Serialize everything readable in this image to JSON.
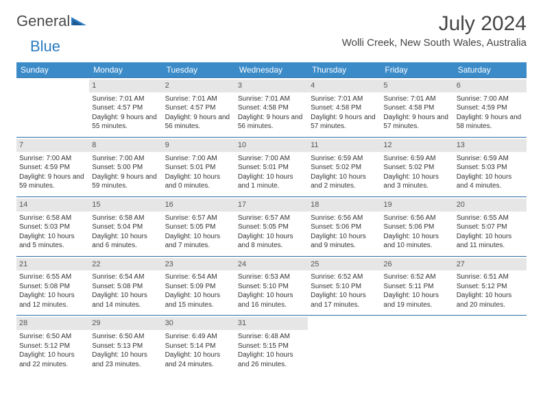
{
  "logo": {
    "text1": "General",
    "text2": "Blue"
  },
  "title": "July 2024",
  "location": "Wolli Creek, New South Wales, Australia",
  "colors": {
    "header_bg": "#3b8bc9",
    "header_text": "#ffffff",
    "daynum_bg": "#e6e6e6",
    "border": "#2a6ca8",
    "logo_blue": "#2a7ac0"
  },
  "weekdays": [
    "Sunday",
    "Monday",
    "Tuesday",
    "Wednesday",
    "Thursday",
    "Friday",
    "Saturday"
  ],
  "weeks": [
    [
      {
        "n": "",
        "sr": "",
        "ss": "",
        "dl": ""
      },
      {
        "n": "1",
        "sr": "Sunrise: 7:01 AM",
        "ss": "Sunset: 4:57 PM",
        "dl": "Daylight: 9 hours and 55 minutes."
      },
      {
        "n": "2",
        "sr": "Sunrise: 7:01 AM",
        "ss": "Sunset: 4:57 PM",
        "dl": "Daylight: 9 hours and 56 minutes."
      },
      {
        "n": "3",
        "sr": "Sunrise: 7:01 AM",
        "ss": "Sunset: 4:58 PM",
        "dl": "Daylight: 9 hours and 56 minutes."
      },
      {
        "n": "4",
        "sr": "Sunrise: 7:01 AM",
        "ss": "Sunset: 4:58 PM",
        "dl": "Daylight: 9 hours and 57 minutes."
      },
      {
        "n": "5",
        "sr": "Sunrise: 7:01 AM",
        "ss": "Sunset: 4:58 PM",
        "dl": "Daylight: 9 hours and 57 minutes."
      },
      {
        "n": "6",
        "sr": "Sunrise: 7:00 AM",
        "ss": "Sunset: 4:59 PM",
        "dl": "Daylight: 9 hours and 58 minutes."
      }
    ],
    [
      {
        "n": "7",
        "sr": "Sunrise: 7:00 AM",
        "ss": "Sunset: 4:59 PM",
        "dl": "Daylight: 9 hours and 59 minutes."
      },
      {
        "n": "8",
        "sr": "Sunrise: 7:00 AM",
        "ss": "Sunset: 5:00 PM",
        "dl": "Daylight: 9 hours and 59 minutes."
      },
      {
        "n": "9",
        "sr": "Sunrise: 7:00 AM",
        "ss": "Sunset: 5:01 PM",
        "dl": "Daylight: 10 hours and 0 minutes."
      },
      {
        "n": "10",
        "sr": "Sunrise: 7:00 AM",
        "ss": "Sunset: 5:01 PM",
        "dl": "Daylight: 10 hours and 1 minute."
      },
      {
        "n": "11",
        "sr": "Sunrise: 6:59 AM",
        "ss": "Sunset: 5:02 PM",
        "dl": "Daylight: 10 hours and 2 minutes."
      },
      {
        "n": "12",
        "sr": "Sunrise: 6:59 AM",
        "ss": "Sunset: 5:02 PM",
        "dl": "Daylight: 10 hours and 3 minutes."
      },
      {
        "n": "13",
        "sr": "Sunrise: 6:59 AM",
        "ss": "Sunset: 5:03 PM",
        "dl": "Daylight: 10 hours and 4 minutes."
      }
    ],
    [
      {
        "n": "14",
        "sr": "Sunrise: 6:58 AM",
        "ss": "Sunset: 5:03 PM",
        "dl": "Daylight: 10 hours and 5 minutes."
      },
      {
        "n": "15",
        "sr": "Sunrise: 6:58 AM",
        "ss": "Sunset: 5:04 PM",
        "dl": "Daylight: 10 hours and 6 minutes."
      },
      {
        "n": "16",
        "sr": "Sunrise: 6:57 AM",
        "ss": "Sunset: 5:05 PM",
        "dl": "Daylight: 10 hours and 7 minutes."
      },
      {
        "n": "17",
        "sr": "Sunrise: 6:57 AM",
        "ss": "Sunset: 5:05 PM",
        "dl": "Daylight: 10 hours and 8 minutes."
      },
      {
        "n": "18",
        "sr": "Sunrise: 6:56 AM",
        "ss": "Sunset: 5:06 PM",
        "dl": "Daylight: 10 hours and 9 minutes."
      },
      {
        "n": "19",
        "sr": "Sunrise: 6:56 AM",
        "ss": "Sunset: 5:06 PM",
        "dl": "Daylight: 10 hours and 10 minutes."
      },
      {
        "n": "20",
        "sr": "Sunrise: 6:55 AM",
        "ss": "Sunset: 5:07 PM",
        "dl": "Daylight: 10 hours and 11 minutes."
      }
    ],
    [
      {
        "n": "21",
        "sr": "Sunrise: 6:55 AM",
        "ss": "Sunset: 5:08 PM",
        "dl": "Daylight: 10 hours and 12 minutes."
      },
      {
        "n": "22",
        "sr": "Sunrise: 6:54 AM",
        "ss": "Sunset: 5:08 PM",
        "dl": "Daylight: 10 hours and 14 minutes."
      },
      {
        "n": "23",
        "sr": "Sunrise: 6:54 AM",
        "ss": "Sunset: 5:09 PM",
        "dl": "Daylight: 10 hours and 15 minutes."
      },
      {
        "n": "24",
        "sr": "Sunrise: 6:53 AM",
        "ss": "Sunset: 5:10 PM",
        "dl": "Daylight: 10 hours and 16 minutes."
      },
      {
        "n": "25",
        "sr": "Sunrise: 6:52 AM",
        "ss": "Sunset: 5:10 PM",
        "dl": "Daylight: 10 hours and 17 minutes."
      },
      {
        "n": "26",
        "sr": "Sunrise: 6:52 AM",
        "ss": "Sunset: 5:11 PM",
        "dl": "Daylight: 10 hours and 19 minutes."
      },
      {
        "n": "27",
        "sr": "Sunrise: 6:51 AM",
        "ss": "Sunset: 5:12 PM",
        "dl": "Daylight: 10 hours and 20 minutes."
      }
    ],
    [
      {
        "n": "28",
        "sr": "Sunrise: 6:50 AM",
        "ss": "Sunset: 5:12 PM",
        "dl": "Daylight: 10 hours and 22 minutes."
      },
      {
        "n": "29",
        "sr": "Sunrise: 6:50 AM",
        "ss": "Sunset: 5:13 PM",
        "dl": "Daylight: 10 hours and 23 minutes."
      },
      {
        "n": "30",
        "sr": "Sunrise: 6:49 AM",
        "ss": "Sunset: 5:14 PM",
        "dl": "Daylight: 10 hours and 24 minutes."
      },
      {
        "n": "31",
        "sr": "Sunrise: 6:48 AM",
        "ss": "Sunset: 5:15 PM",
        "dl": "Daylight: 10 hours and 26 minutes."
      },
      {
        "n": "",
        "sr": "",
        "ss": "",
        "dl": ""
      },
      {
        "n": "",
        "sr": "",
        "ss": "",
        "dl": ""
      },
      {
        "n": "",
        "sr": "",
        "ss": "",
        "dl": ""
      }
    ]
  ]
}
